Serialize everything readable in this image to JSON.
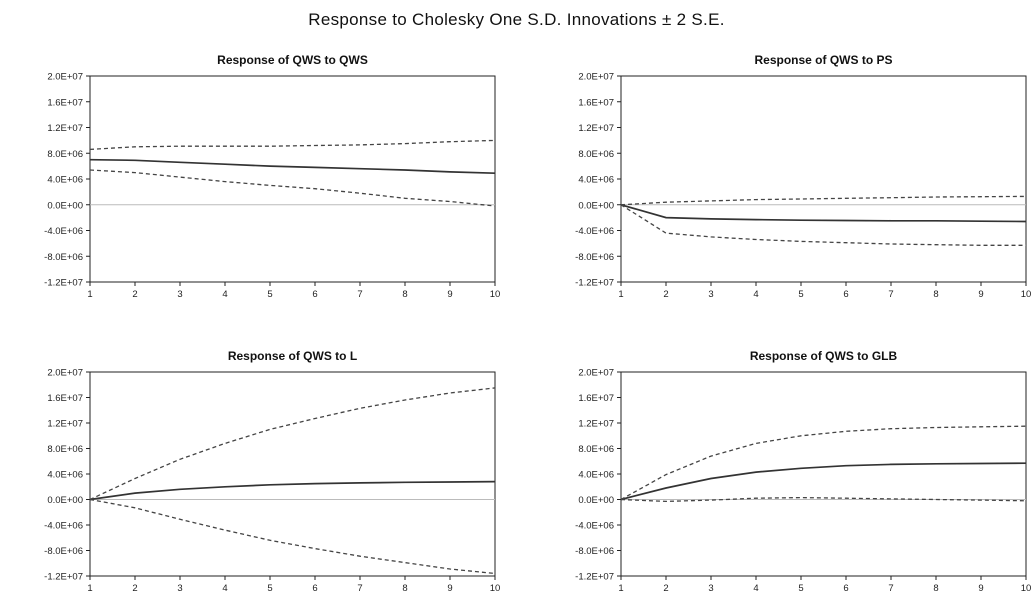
{
  "title": "Response to Cholesky One S.D. Innovations ± 2 S.E.",
  "style": {
    "line_color": "#333333",
    "band_color": "#444444",
    "zero_line_color": "#bbbbbb",
    "frame_color": "#222222"
  },
  "chart_data": [
    {
      "type": "line",
      "title": "Response of QWS to QWS",
      "x": [
        1,
        2,
        3,
        4,
        5,
        6,
        7,
        8,
        9,
        10
      ],
      "ylim": [
        -12000000,
        20000000
      ],
      "yticks": [
        "2.0E+07",
        "1.6E+07",
        "1.2E+07",
        "8.0E+06",
        "4.0E+06",
        "0.0E+00",
        "-4.0E+06",
        "-8.0E+06",
        "-1.2E+07"
      ],
      "xticks": [
        "1",
        "2",
        "3",
        "4",
        "5",
        "6",
        "7",
        "8",
        "9",
        "10"
      ],
      "series": [
        {
          "role": "response",
          "values": [
            7000000,
            6900000,
            6600000,
            6300000,
            6000000,
            5800000,
            5600000,
            5400000,
            5100000,
            4900000
          ]
        },
        {
          "role": "upper",
          "values": [
            8600000,
            9000000,
            9100000,
            9100000,
            9100000,
            9200000,
            9300000,
            9500000,
            9800000,
            10000000
          ]
        },
        {
          "role": "lower",
          "values": [
            5400000,
            5000000,
            4300000,
            3600000,
            3000000,
            2500000,
            1800000,
            1000000,
            500000,
            -200000
          ]
        }
      ]
    },
    {
      "type": "line",
      "title": "Response of QWS to PS",
      "x": [
        1,
        2,
        3,
        4,
        5,
        6,
        7,
        8,
        9,
        10
      ],
      "ylim": [
        -12000000,
        20000000
      ],
      "yticks": [
        "2.0E+07",
        "1.6E+07",
        "1.2E+07",
        "8.0E+06",
        "4.0E+06",
        "0.0E+00",
        "-4.0E+06",
        "-8.0E+06",
        "-1.2E+07"
      ],
      "xticks": [
        "1",
        "2",
        "3",
        "4",
        "5",
        "6",
        "7",
        "8",
        "9",
        "10"
      ],
      "series": [
        {
          "role": "response",
          "values": [
            0,
            -2000000,
            -2200000,
            -2300000,
            -2400000,
            -2450000,
            -2500000,
            -2500000,
            -2550000,
            -2600000
          ]
        },
        {
          "role": "upper",
          "values": [
            0,
            400000,
            600000,
            800000,
            900000,
            1000000,
            1100000,
            1200000,
            1250000,
            1300000
          ]
        },
        {
          "role": "lower",
          "values": [
            0,
            -4400000,
            -5000000,
            -5400000,
            -5700000,
            -5900000,
            -6100000,
            -6200000,
            -6300000,
            -6300000
          ]
        }
      ]
    },
    {
      "type": "line",
      "title": "Response of QWS to L",
      "x": [
        1,
        2,
        3,
        4,
        5,
        6,
        7,
        8,
        9,
        10
      ],
      "ylim": [
        -12000000,
        20000000
      ],
      "yticks": [
        "2.0E+07",
        "1.6E+07",
        "1.2E+07",
        "8.0E+06",
        "4.0E+06",
        "0.0E+00",
        "-4.0E+06",
        "-8.0E+06",
        "-1.2E+07"
      ],
      "xticks": [
        "1",
        "2",
        "3",
        "4",
        "5",
        "6",
        "7",
        "8",
        "9",
        "10"
      ],
      "series": [
        {
          "role": "response",
          "values": [
            0,
            1000000,
            1600000,
            2000000,
            2300000,
            2500000,
            2600000,
            2700000,
            2750000,
            2800000
          ]
        },
        {
          "role": "upper",
          "values": [
            0,
            3300000,
            6300000,
            8800000,
            11000000,
            12700000,
            14300000,
            15600000,
            16700000,
            17500000
          ]
        },
        {
          "role": "lower",
          "values": [
            0,
            -1300000,
            -3100000,
            -4800000,
            -6400000,
            -7700000,
            -8900000,
            -9900000,
            -10900000,
            -11600000
          ]
        }
      ]
    },
    {
      "type": "line",
      "title": "Response of QWS to GLB",
      "x": [
        1,
        2,
        3,
        4,
        5,
        6,
        7,
        8,
        9,
        10
      ],
      "ylim": [
        -12000000,
        20000000
      ],
      "yticks": [
        "2.0E+07",
        "1.6E+07",
        "1.2E+07",
        "8.0E+06",
        "4.0E+06",
        "0.0E+00",
        "-4.0E+06",
        "-8.0E+06",
        "-1.2E+07"
      ],
      "xticks": [
        "1",
        "2",
        "3",
        "4",
        "5",
        "6",
        "7",
        "8",
        "9",
        "10"
      ],
      "series": [
        {
          "role": "response",
          "values": [
            0,
            1800000,
            3300000,
            4300000,
            4900000,
            5300000,
            5500000,
            5600000,
            5650000,
            5700000
          ]
        },
        {
          "role": "upper",
          "values": [
            0,
            3900000,
            6800000,
            8800000,
            10000000,
            10700000,
            11100000,
            11300000,
            11400000,
            11500000
          ]
        },
        {
          "role": "lower",
          "values": [
            0,
            -300000,
            -100000,
            200000,
            300000,
            200000,
            100000,
            0,
            -100000,
            -200000
          ]
        }
      ]
    }
  ]
}
